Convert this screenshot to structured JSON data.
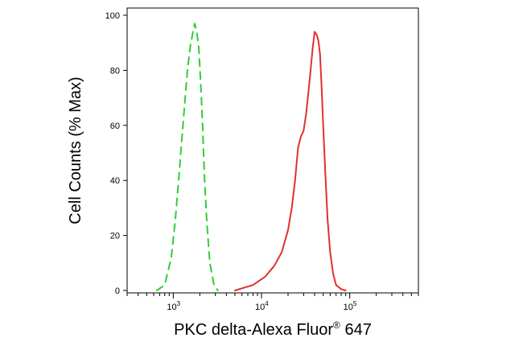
{
  "chart_data": {
    "type": "line",
    "xlabel": "PKC delta-Alexa Fluor",
    "xlabel_sup": "®",
    "xlabel_suffix": " 647",
    "ylabel": "Cell Counts (% Max)",
    "x_scale": "log",
    "xlim": [
      300,
      600000
    ],
    "ylim": [
      0,
      100
    ],
    "y_ticks": [
      0,
      20,
      40,
      60,
      80,
      100
    ],
    "x_ticks": [
      {
        "value": 1000,
        "base": "10",
        "exp": "3"
      },
      {
        "value": 10000,
        "base": "10",
        "exp": "4"
      },
      {
        "value": 100000,
        "base": "10",
        "exp": "5"
      }
    ],
    "grid": false,
    "series": [
      {
        "color": "#33cc33",
        "style": "dashed",
        "x": [
          650,
          800,
          950,
          1050,
          1150,
          1250,
          1350,
          1450,
          1550,
          1650,
          1750,
          1850,
          1950,
          2050,
          2150,
          2250,
          2400,
          2600,
          2900,
          3200
        ],
        "y": [
          0,
          2,
          12,
          25,
          40,
          55,
          68,
          80,
          88,
          93,
          97,
          94,
          88,
          75,
          60,
          42,
          25,
          10,
          2,
          0
        ]
      },
      {
        "color": "#e03030",
        "style": "solid",
        "x": [
          5000,
          8000,
          11000,
          14000,
          17000,
          20000,
          22000,
          24000,
          26000,
          28000,
          30000,
          32000,
          34000,
          36000,
          38000,
          40000,
          42000,
          44000,
          46000,
          48000,
          50000,
          53000,
          56000,
          60000,
          65000,
          70000,
          80000,
          90000
        ],
        "y": [
          0,
          2,
          5,
          9,
          14,
          22,
          30,
          40,
          52,
          56,
          58,
          64,
          72,
          80,
          88,
          94,
          93,
          91,
          86,
          74,
          60,
          42,
          26,
          14,
          6,
          2,
          0.5,
          0
        ]
      }
    ]
  }
}
